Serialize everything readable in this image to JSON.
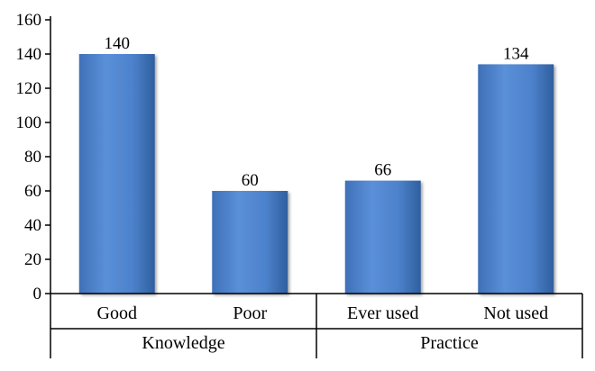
{
  "chart_data": {
    "type": "bar",
    "categories": [
      "Good",
      "Poor",
      "Ever used",
      "Not used"
    ],
    "groups": [
      {
        "label": "Knowledge",
        "categories": [
          "Good",
          "Poor"
        ]
      },
      {
        "label": "Practice",
        "categories": [
          "Ever used",
          "Not used"
        ]
      }
    ],
    "values": [
      140,
      60,
      66,
      134
    ],
    "data_labels": [
      "140",
      "60",
      "66",
      "134"
    ],
    "y_ticks": [
      "0",
      "20",
      "40",
      "60",
      "80",
      "100",
      "120",
      "140",
      "160"
    ],
    "ylim": [
      0,
      160
    ],
    "title": "",
    "xlabel": "",
    "ylabel": "",
    "grid": false,
    "legend": "none",
    "bar_color": "#4a7ec8"
  }
}
